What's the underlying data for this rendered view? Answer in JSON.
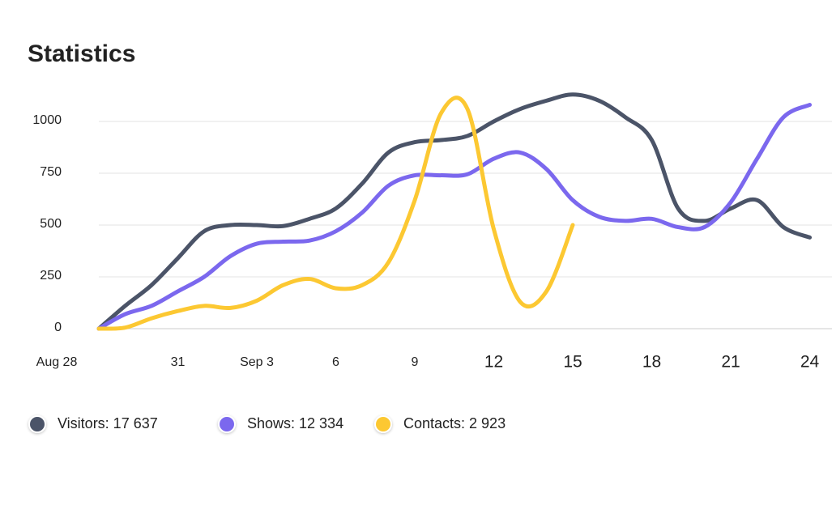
{
  "chart_data": {
    "type": "line",
    "title": "Statistics",
    "categories": [
      "Aug 28",
      null,
      null,
      "31",
      null,
      null,
      "Sep 3",
      null,
      null,
      "6",
      null,
      null,
      "9",
      null,
      null,
      "12",
      null,
      null,
      "15",
      null,
      null,
      "18",
      null,
      null,
      "21",
      null,
      null,
      "24"
    ],
    "series": [
      {
        "name": "Visitors: 17 637",
        "color": "#4b5468",
        "values": [
          0,
          110,
          210,
          340,
          470,
          500,
          500,
          495,
          530,
          580,
          700,
          850,
          900,
          910,
          930,
          1000,
          1060,
          1100,
          1130,
          1100,
          1020,
          910,
          580,
          520,
          580,
          620,
          490,
          440
        ]
      },
      {
        "name": "Shows: 12 334",
        "color": "#7b68ee",
        "values": [
          0,
          70,
          110,
          180,
          250,
          350,
          410,
          420,
          425,
          470,
          560,
          690,
          740,
          740,
          745,
          820,
          850,
          770,
          620,
          540,
          520,
          530,
          490,
          490,
          610,
          820,
          1020,
          1080
        ]
      },
      {
        "name": "Contacts: 2 923",
        "color": "#fcc832",
        "values": [
          0,
          5,
          50,
          85,
          110,
          100,
          135,
          210,
          240,
          195,
          210,
          320,
          620,
          1040,
          1060,
          480,
          130,
          180,
          500,
          null,
          null,
          null,
          null,
          null,
          null,
          null,
          null,
          null
        ]
      }
    ],
    "ylim": [
      0,
      1000
    ],
    "yticks": [
      0,
      250,
      500,
      750,
      1000
    ],
    "grid": true
  }
}
